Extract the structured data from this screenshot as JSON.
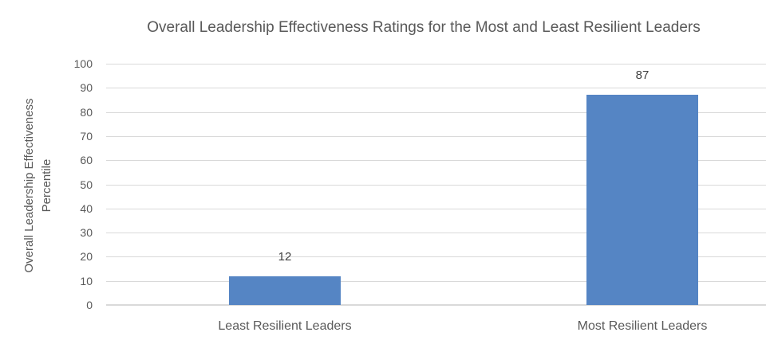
{
  "chart_data": {
    "type": "bar",
    "title": "Overall Leadership Effectiveness Ratings for the Most and Least Resilient Leaders",
    "ylabel_lines": [
      "Overall Leadership Effectiveness",
      "Percentile"
    ],
    "categories": [
      "Least Resilient Leaders",
      "Most Resilient Leaders"
    ],
    "values": [
      12,
      87
    ],
    "data_labels": [
      "12",
      "87"
    ],
    "yticks": [
      0,
      10,
      20,
      30,
      40,
      50,
      60,
      70,
      80,
      90,
      100
    ],
    "ylim": [
      0,
      100
    ],
    "grid": true,
    "legend": "none",
    "colors": {
      "bar": "#5585C4",
      "gridline": "#D9D9D9",
      "baseline": "#D9D9D9",
      "axis_text": "#595959",
      "title_text": "#595959",
      "data_label_text": "#404040"
    }
  }
}
